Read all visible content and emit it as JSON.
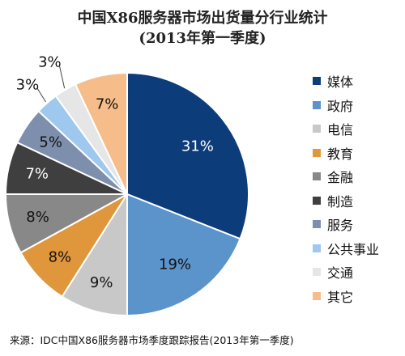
{
  "title": "中国X86服务器市场出货量分行业统计",
  "subtitle": "(2013年第一季度)",
  "source": "来源：IDC中国X86服务器市场季度跟踪报告(2013年第一季度)",
  "chart_data": {
    "type": "pie",
    "title": "中国X86服务器市场出货量分行业统计",
    "subtitle": "(2013年第一季度)",
    "unit": "%",
    "legend_position": "right",
    "start_angle_deg": 0,
    "direction": "clockwise",
    "slices": [
      {
        "label": "媒体",
        "value": 31,
        "data_label": "31%",
        "color": "#0d3c7a",
        "label_color": "#ffffff"
      },
      {
        "label": "政府",
        "value": 19,
        "data_label": "19%",
        "color": "#5b93cb",
        "label_color": "#111111"
      },
      {
        "label": "电信",
        "value": 9,
        "data_label": "9%",
        "color": "#c8c8c8",
        "label_color": "#111111"
      },
      {
        "label": "教育",
        "value": 8,
        "data_label": "8%",
        "color": "#e0963a",
        "label_color": "#111111"
      },
      {
        "label": "金融",
        "value": 8,
        "data_label": "8%",
        "color": "#888888",
        "label_color": "#111111"
      },
      {
        "label": "制造",
        "value": 7,
        "data_label": "7%",
        "color": "#3f3f3f",
        "label_color": "#ffffff"
      },
      {
        "label": "服务",
        "value": 5,
        "data_label": "5%",
        "color": "#7e8fae",
        "label_color": "#111111"
      },
      {
        "label": "公共事业",
        "value": 3,
        "data_label": "3%",
        "color": "#9fc8ee",
        "label_color": "#111111"
      },
      {
        "label": "交通",
        "value": 3,
        "data_label": "3%",
        "color": "#e6e6e6",
        "label_color": "#111111"
      },
      {
        "label": "其它",
        "value": 7,
        "data_label": "7%",
        "color": "#f6bd8a",
        "label_color": "#111111"
      }
    ]
  }
}
